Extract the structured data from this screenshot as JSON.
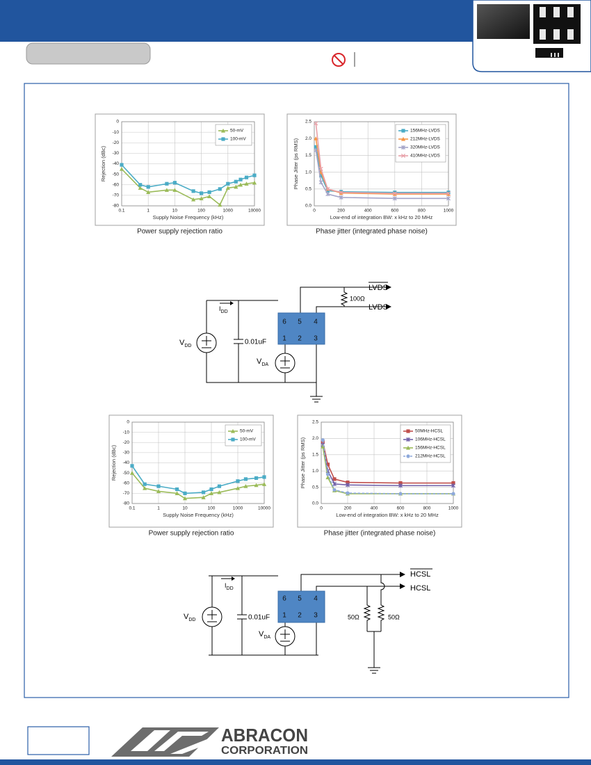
{
  "diagrams": [
    {
      "out_inverted": "LVDS",
      "out": "LVDS",
      "resistor": "100Ω",
      "idd": {
        "main": "I",
        "sub": "DD"
      },
      "vdd": {
        "main": "V",
        "sub": "DD"
      },
      "vda": {
        "main": "V",
        "sub": "DA"
      },
      "capacitor": "0.01uF",
      "pins": [
        "6",
        "5",
        "4",
        "1",
        "2",
        "3"
      ]
    },
    {
      "out_inverted": "HCSL",
      "out": "HCSL",
      "resistors": [
        "50Ω",
        "50Ω"
      ],
      "idd": {
        "main": "I",
        "sub": "DD"
      },
      "vdd": {
        "main": "V",
        "sub": "DD"
      },
      "vda": {
        "main": "V",
        "sub": "DA"
      },
      "capacitor": "0.01uF",
      "pins": [
        "6",
        "5",
        "4",
        "1",
        "2",
        "3"
      ]
    }
  ],
  "logo": {
    "line1": "ABRACON",
    "line2": "CORPORATION"
  },
  "chart_data": [
    {
      "type": "line",
      "caption": "Power supply rejection ratio",
      "xlabel": "Supply Noise Frequency (kHz)",
      "ylabel": "Rejection (dBc)",
      "xscale": "log",
      "xlim": [
        0.1,
        10000
      ],
      "xticks": [
        0.1,
        1,
        10,
        100,
        1000,
        10000
      ],
      "ylim": [
        -80,
        0
      ],
      "yticks": [
        0,
        -10,
        -20,
        -30,
        -40,
        -50,
        -60,
        -70,
        -80
      ],
      "grid": true,
      "legend": "upper right",
      "x": [
        0.1,
        0.5,
        1,
        5,
        10,
        50,
        100,
        200,
        500,
        1000,
        2000,
        3000,
        5000,
        10000
      ],
      "series": [
        {
          "name": "50-mV",
          "color": "#9bbb59",
          "marker": "triangle",
          "values": [
            -45,
            -63,
            -67,
            -65,
            -65,
            -74,
            -73,
            -71,
            -79,
            -63,
            -62,
            -60,
            -59,
            -58
          ]
        },
        {
          "name": "100-mV",
          "color": "#4bacc6",
          "marker": "square",
          "values": [
            -41,
            -60,
            -62,
            -59,
            -58,
            -66,
            -68,
            -67,
            -64,
            -59,
            -57,
            -55,
            -53,
            -51
          ]
        }
      ]
    },
    {
      "type": "line",
      "caption": "Phase jitter (integrated phase noise)",
      "xlabel": "Low-end of integration BW: x kHz to 20 MHz",
      "ylabel": "Phase Jitter (ps RMS)",
      "xlim": [
        0,
        1000
      ],
      "xticks": [
        0,
        200,
        400,
        600,
        800,
        1000
      ],
      "ylim": [
        0,
        2.5
      ],
      "yticks": [
        {
          "value": 0,
          "label": "0.0"
        },
        0.5,
        {
          "value": 1,
          "label": "1.0"
        },
        1.5,
        {
          "value": 2,
          "label": "2.0"
        },
        2.5
      ],
      "grid": true,
      "legend": "upper right",
      "x": [
        12,
        50,
        100,
        200,
        600,
        1000
      ],
      "series": [
        {
          "name": "156MHz-LVDS",
          "color": "#4bacc6",
          "marker": "square",
          "values": [
            1.75,
            0.9,
            0.45,
            0.42,
            0.4,
            0.4
          ]
        },
        {
          "name": "212MHz-LVDS",
          "color": "#f79646",
          "marker": "triangle",
          "values": [
            2.0,
            1.0,
            0.5,
            0.38,
            0.35,
            0.35
          ]
        },
        {
          "name": "320MHz-LVDS",
          "color": "#a5a5c8",
          "marker": "star",
          "values": [
            1.65,
            0.7,
            0.35,
            0.25,
            0.22,
            0.22
          ]
        },
        {
          "name": "410MHz-LVDS",
          "color": "#e8a0a8",
          "marker": "x",
          "values": [
            2.45,
            1.1,
            0.5,
            0.4,
            0.37,
            0.37
          ]
        }
      ]
    },
    {
      "type": "line",
      "caption": "Power supply rejection ratio",
      "xlabel": "Supply Noise Frequency (kHz)",
      "ylabel": "Rejection (dBc)",
      "xscale": "log",
      "xlim": [
        0.1,
        10000
      ],
      "xticks": [
        0.1,
        1,
        10,
        100,
        1000,
        10000
      ],
      "ylim": [
        -80,
        0
      ],
      "yticks": [
        0,
        -10,
        -20,
        -30,
        -40,
        -50,
        -60,
        -70,
        -80
      ],
      "grid": true,
      "legend": "upper right",
      "x": [
        0.1,
        0.3,
        1,
        5,
        10,
        50,
        100,
        200,
        1000,
        2000,
        5000,
        10000
      ],
      "series": [
        {
          "name": "50-mV",
          "color": "#9bbb59",
          "marker": "triangle",
          "values": [
            -50,
            -65,
            -68,
            -70,
            -75,
            -74,
            -70,
            -69,
            -65,
            -63,
            -62,
            -61
          ]
        },
        {
          "name": "100-mV",
          "color": "#4bacc6",
          "marker": "square",
          "values": [
            -43,
            -61,
            -63,
            -66,
            -70,
            -69,
            -66,
            -63,
            -58,
            -56,
            -55,
            -54
          ]
        }
      ]
    },
    {
      "type": "line",
      "caption": "Phase jitter (integrated phase noise)",
      "xlabel": "Low-end of integration BW: x kHz to 20 MHz",
      "ylabel": "Phase Jitter (ps RMS)",
      "xlim": [
        0,
        1000
      ],
      "xticks": [
        0,
        200,
        400,
        600,
        800,
        1000
      ],
      "ylim": [
        0,
        2.5
      ],
      "yticks": [
        {
          "value": 0,
          "label": "0.0"
        },
        0.5,
        {
          "value": 1,
          "label": "1.0"
        },
        1.5,
        {
          "value": 2,
          "label": "2.0"
        },
        2.5
      ],
      "grid": true,
      "legend": "upper right",
      "x": [
        12,
        50,
        100,
        200,
        600,
        1000
      ],
      "series": [
        {
          "name": "50MHz-HCSL",
          "color": "#c0504d",
          "marker": "square",
          "values": [
            1.9,
            1.2,
            0.75,
            0.65,
            0.63,
            0.63
          ]
        },
        {
          "name": "106MHz-HCSL",
          "color": "#7060a8",
          "marker": "star",
          "values": [
            1.8,
            1.0,
            0.6,
            0.57,
            0.55,
            0.55
          ]
        },
        {
          "name": "156MHz-HCSL",
          "color": "#9bbb59",
          "marker": "triangle",
          "values": [
            1.75,
            0.8,
            0.4,
            0.3,
            0.3,
            0.3
          ]
        },
        {
          "name": "212MHz-HCSL",
          "color": "#8ea9db",
          "marker": "circle",
          "dashed": true,
          "values": [
            1.95,
            0.9,
            0.42,
            0.32,
            0.3,
            0.3
          ]
        }
      ]
    }
  ]
}
